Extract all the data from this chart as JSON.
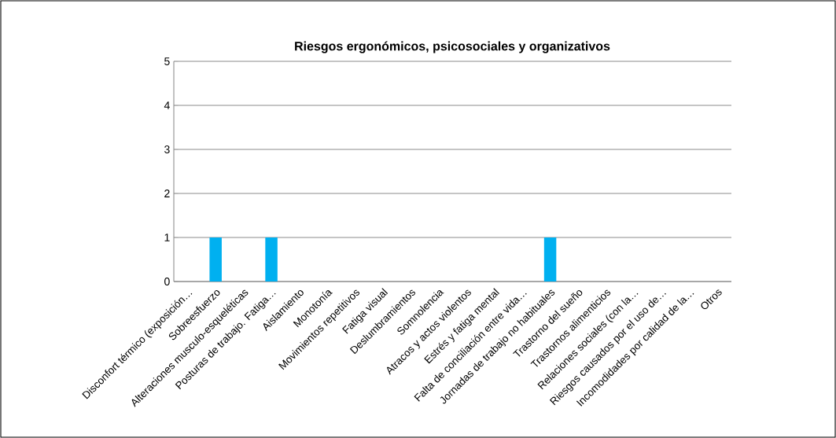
{
  "chart_data": {
    "type": "bar",
    "title": "Riesgos ergonómicos, psicosociales y organizativos",
    "categories": [
      "Disconfort térmico (exposición…",
      "Sobreesfuerzo",
      "Alteraciones musculo-esqueléticas",
      "Posturas de trabajo. Fatiga…",
      "Aislamiento",
      "Monotonía",
      "Movimientos repetitivos",
      "Fatiga visual",
      "Deslumbramientos",
      "Somnolencia",
      "Atracos y actos violentos",
      "Estrés y fatiga mental",
      "Falta de conciliación entre vida…",
      "Jornadas de trabajo no habituales",
      "Trastorno del sueño",
      "Trastornos alimenticios",
      "Relaciones sociales (con la…",
      "Riesgos causados por el uso de…",
      "Incomodidades por calidad de la…",
      "Otros"
    ],
    "values": [
      0,
      1,
      0,
      1,
      0,
      0,
      0,
      0,
      0,
      0,
      0,
      0,
      0,
      1,
      0,
      0,
      0,
      0,
      0,
      0
    ],
    "color": "#00b0f0",
    "ylim": [
      0,
      5
    ],
    "yticks": [
      0,
      1,
      2,
      3,
      4,
      5
    ],
    "grid": "y"
  }
}
